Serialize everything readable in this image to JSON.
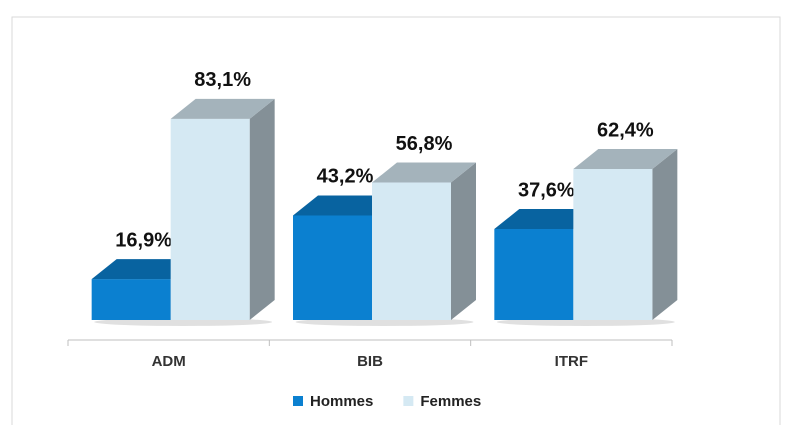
{
  "chart_data": {
    "type": "bar3d",
    "categories": [
      "ADM",
      "BIB",
      "ITRF"
    ],
    "series": [
      {
        "name": "Hommes",
        "color": "#0b80d0",
        "values": [
          16.9,
          43.2,
          37.6
        ],
        "value_labels": [
          "16,9%",
          "43,2%",
          "37,6%"
        ]
      },
      {
        "name": "Femmes",
        "color": "#d5e9f3",
        "values": [
          83.1,
          56.8,
          62.4
        ],
        "value_labels": [
          "83,1%",
          "56,8%",
          "62,4%"
        ]
      }
    ],
    "legend": "bottom"
  }
}
